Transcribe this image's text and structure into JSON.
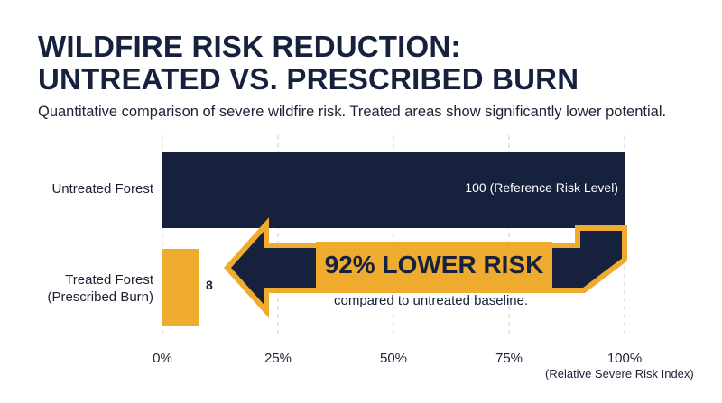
{
  "title_line1": "WILDFIRE RISK REDUCTION:",
  "title_line2": "UNTREATED VS. PRESCRIBED BURN",
  "subtitle": "Quantitative comparison of severe wildfire risk. Treated areas show significantly lower potential.",
  "colors": {
    "navy": "#16213d",
    "gold": "#efab2e",
    "grid": "#c9ccd3"
  },
  "chart_data": {
    "type": "bar",
    "orientation": "horizontal",
    "categories": [
      "Untreated Forest",
      "Treated Forest\n(Prescribed Burn)"
    ],
    "category_lines": [
      [
        "Untreated Forest"
      ],
      [
        "Treated Forest",
        "(Prescribed Burn)"
      ]
    ],
    "values": [
      100,
      8
    ],
    "value_labels": [
      "100 (Reference Risk Level)",
      "8"
    ],
    "xlim": [
      0,
      100
    ],
    "x_ticks": [
      0,
      25,
      50,
      75,
      100
    ],
    "x_tick_labels": [
      "0%",
      "25%",
      "50%",
      "75%",
      "100%"
    ],
    "xlabel": "(Relative Severe Risk Index)",
    "grid": "vertical dashed",
    "annotation": {
      "main": "92% LOWER RISK",
      "sub": "compared to untreated baseline."
    }
  }
}
